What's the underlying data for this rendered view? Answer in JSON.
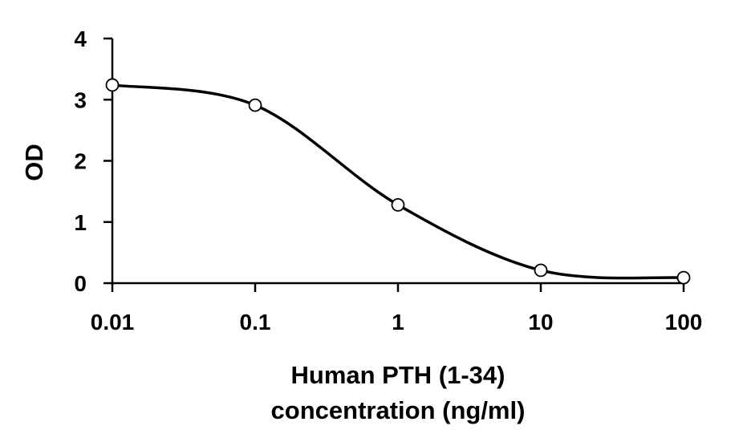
{
  "chart_data": {
    "type": "line",
    "title": "",
    "xlabel_lines": [
      "Human PTH (1-34)",
      "concentration (ng/ml)"
    ],
    "ylabel": "OD",
    "x_scale": "log",
    "xlim": [
      0.01,
      100
    ],
    "ylim": [
      0,
      4
    ],
    "x_ticks": [
      0.01,
      0.1,
      1,
      10,
      100
    ],
    "x_tick_labels": [
      "0.01",
      "0.1",
      "1",
      "10",
      "100"
    ],
    "y_ticks": [
      0,
      1,
      2,
      3,
      4
    ],
    "y_tick_labels": [
      "0",
      "1",
      "2",
      "3",
      "4"
    ],
    "grid": false,
    "legend": "none",
    "series": [
      {
        "x": [
          0.01,
          0.1,
          1,
          10,
          100
        ],
        "y": [
          3.24,
          2.91,
          1.28,
          0.21,
          0.09
        ],
        "marker": "open-circle",
        "smooth": true
      }
    ],
    "colors": {
      "line": "#000000",
      "marker_fill": "#ffffff",
      "axis": "#000000"
    }
  }
}
